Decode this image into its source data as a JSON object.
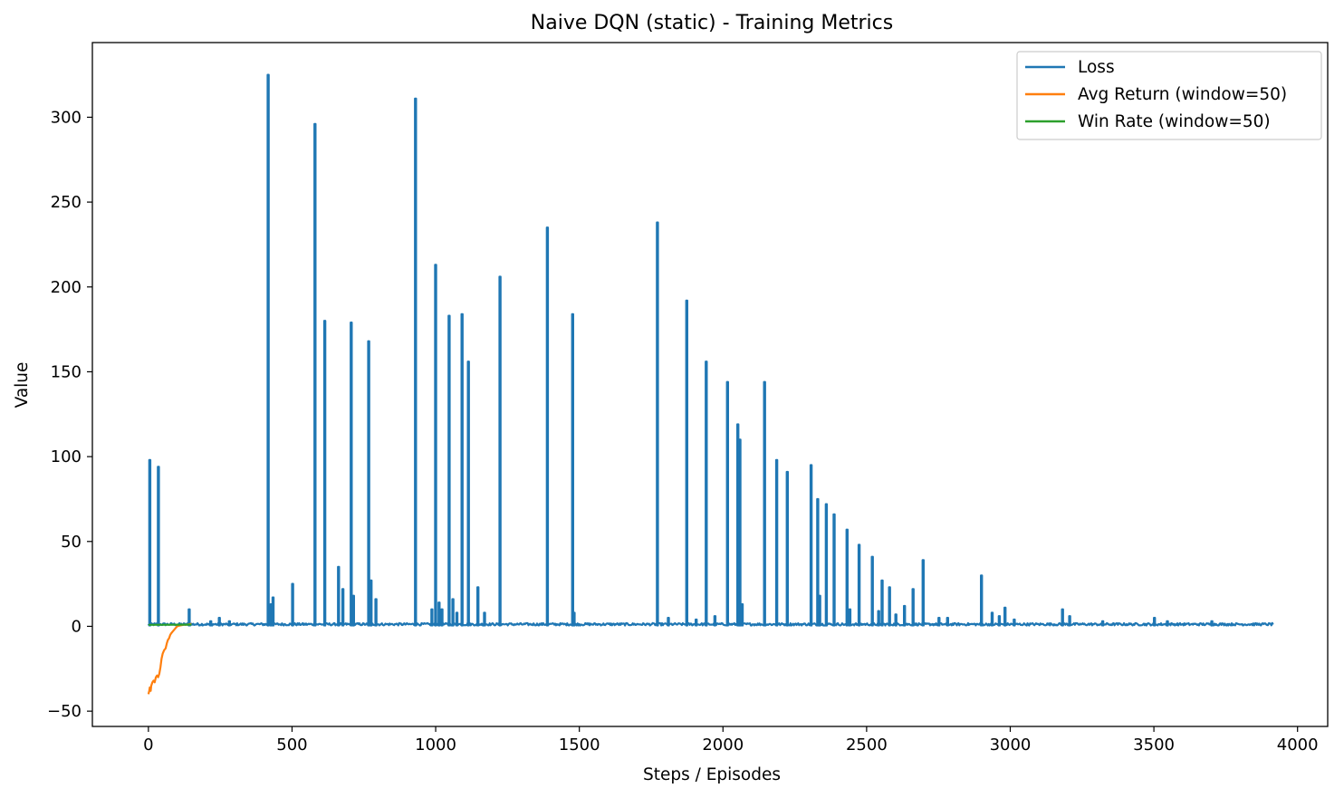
{
  "chart_data": {
    "type": "line",
    "title": "Naive DQN (static) - Training Metrics",
    "xlabel": "Steps / Episodes",
    "ylabel": "Value",
    "xlim": [
      -195,
      4105
    ],
    "ylim": [
      -59,
      344
    ],
    "xticks": [
      0,
      500,
      1000,
      1500,
      2000,
      2500,
      3000,
      3500,
      4000
    ],
    "yticks": [
      -50,
      0,
      50,
      100,
      150,
      200,
      250,
      300
    ],
    "grid": false,
    "legend_position": "top-right",
    "series": [
      {
        "name": "Loss",
        "color": "#1f77b4",
        "baseline": 0.5,
        "x_end": 3915,
        "spikes": [
          [
            3,
            98
          ],
          [
            33,
            94
          ],
          [
            140,
            10
          ],
          [
            215,
            3
          ],
          [
            245,
            5
          ],
          [
            280,
            3
          ],
          [
            415,
            325
          ],
          [
            425,
            13
          ],
          [
            432,
            17
          ],
          [
            500,
            25
          ],
          [
            578,
            296
          ],
          [
            612,
            180
          ],
          [
            660,
            35
          ],
          [
            675,
            22
          ],
          [
            704,
            179
          ],
          [
            712,
            18
          ],
          [
            765,
            168
          ],
          [
            773,
            27
          ],
          [
            790,
            16
          ],
          [
            928,
            311
          ],
          [
            985,
            10
          ],
          [
            998,
            213
          ],
          [
            1010,
            14
          ],
          [
            1020,
            10
          ],
          [
            1045,
            183
          ],
          [
            1058,
            16
          ],
          [
            1072,
            8
          ],
          [
            1090,
            184
          ],
          [
            1112,
            156
          ],
          [
            1145,
            23
          ],
          [
            1168,
            8
          ],
          [
            1222,
            206
          ],
          [
            1387,
            235
          ],
          [
            1475,
            184
          ],
          [
            1480,
            8
          ],
          [
            1770,
            238
          ],
          [
            1808,
            5
          ],
          [
            1872,
            192
          ],
          [
            1905,
            4
          ],
          [
            1940,
            156
          ],
          [
            1970,
            6
          ],
          [
            2014,
            144
          ],
          [
            2050,
            119
          ],
          [
            2057,
            110
          ],
          [
            2065,
            13
          ],
          [
            2143,
            144
          ],
          [
            2185,
            98
          ],
          [
            2222,
            91
          ],
          [
            2305,
            95
          ],
          [
            2328,
            75
          ],
          [
            2335,
            18
          ],
          [
            2358,
            72
          ],
          [
            2385,
            66
          ],
          [
            2430,
            57
          ],
          [
            2440,
            10
          ],
          [
            2472,
            48
          ],
          [
            2518,
            41
          ],
          [
            2540,
            9
          ],
          [
            2552,
            27
          ],
          [
            2578,
            23
          ],
          [
            2600,
            7
          ],
          [
            2630,
            12
          ],
          [
            2660,
            22
          ],
          [
            2695,
            39
          ],
          [
            2750,
            5
          ],
          [
            2780,
            5
          ],
          [
            2898,
            30
          ],
          [
            2935,
            8
          ],
          [
            2960,
            6
          ],
          [
            2980,
            11
          ],
          [
            3012,
            4
          ],
          [
            3180,
            10
          ],
          [
            3205,
            6
          ],
          [
            3320,
            3
          ],
          [
            3500,
            5
          ],
          [
            3545,
            3
          ],
          [
            3700,
            3
          ]
        ]
      },
      {
        "name": "Avg Return (window=50)",
        "color": "#ff7f0e",
        "x": [
          0,
          3,
          5,
          8,
          10,
          14,
          18,
          22,
          26,
          30,
          34,
          38,
          42,
          46,
          50,
          55,
          60,
          64,
          68,
          72,
          76,
          80,
          85,
          90,
          95,
          100,
          105,
          110,
          118,
          126,
          134,
          142,
          150
        ],
        "y": [
          -40,
          -38,
          -36,
          -38,
          -35,
          -33,
          -32,
          -33,
          -30,
          -29,
          -30,
          -28,
          -24,
          -19,
          -16,
          -14,
          -13,
          -10,
          -8,
          -7,
          -5,
          -4,
          -3,
          -2,
          -1,
          0,
          0.3,
          0.5,
          0.8,
          1,
          1,
          1.2,
          1.5
        ]
      },
      {
        "name": "Win Rate (window=50)",
        "color": "#2ca02c",
        "x": [
          0,
          150
        ],
        "y": [
          0.9,
          1.0
        ]
      }
    ]
  }
}
